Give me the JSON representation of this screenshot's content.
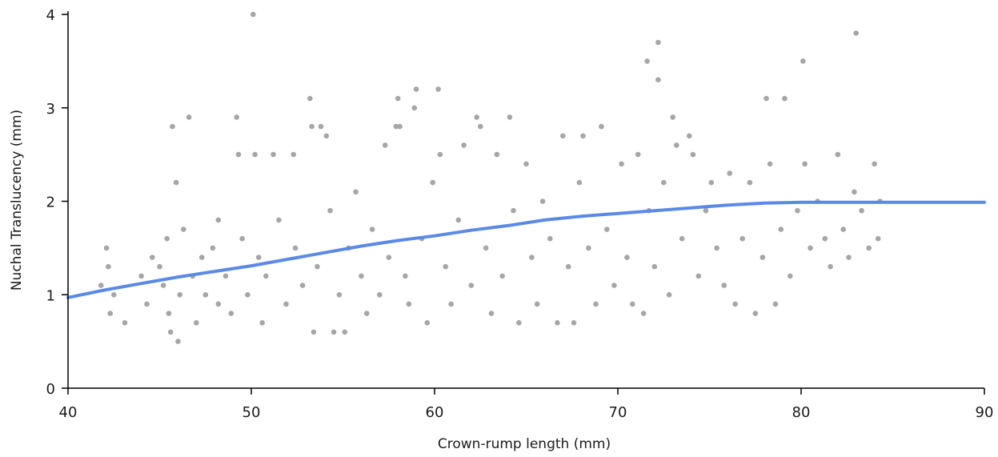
{
  "chart_data": {
    "type": "scatter",
    "title": "",
    "xlabel": "Crown-rump length (mm)",
    "ylabel": "Nuchal Translucency (mm)",
    "xlim": [
      40,
      90
    ],
    "ylim": [
      0,
      4
    ],
    "xticks": [
      "40",
      "50",
      "60",
      "70",
      "80",
      "90"
    ],
    "yticks": [
      "0",
      "1",
      "2",
      "3",
      "4"
    ],
    "grid": false,
    "legend": "none",
    "point_color": "#a6a6a6",
    "curve_color": "#5b8ae6",
    "points_note": "approximately 1,500 measurements; representative sample below",
    "points": [
      [
        41.8,
        1.1
      ],
      [
        42.1,
        1.5
      ],
      [
        42.2,
        1.3
      ],
      [
        42.3,
        0.8
      ],
      [
        42.5,
        1.0
      ],
      [
        43.1,
        0.7
      ],
      [
        44.0,
        1.2
      ],
      [
        44.3,
        0.9
      ],
      [
        44.6,
        1.4
      ],
      [
        45.0,
        1.3
      ],
      [
        45.2,
        1.1
      ],
      [
        45.4,
        1.6
      ],
      [
        45.5,
        0.8
      ],
      [
        45.6,
        0.6
      ],
      [
        45.7,
        2.8
      ],
      [
        45.9,
        2.2
      ],
      [
        46.0,
        0.5
      ],
      [
        46.1,
        1.0
      ],
      [
        46.3,
        1.7
      ],
      [
        46.6,
        2.9
      ],
      [
        46.8,
        1.2
      ],
      [
        47.0,
        0.7
      ],
      [
        47.3,
        1.4
      ],
      [
        47.5,
        1.0
      ],
      [
        47.9,
        1.5
      ],
      [
        48.2,
        0.9
      ],
      [
        48.2,
        1.8
      ],
      [
        48.6,
        1.2
      ],
      [
        48.9,
        0.8
      ],
      [
        49.2,
        2.9
      ],
      [
        49.3,
        2.5
      ],
      [
        49.5,
        1.6
      ],
      [
        49.8,
        1.0
      ],
      [
        50.1,
        4.0
      ],
      [
        50.2,
        2.5
      ],
      [
        50.4,
        1.4
      ],
      [
        50.6,
        0.7
      ],
      [
        50.8,
        1.2
      ],
      [
        51.2,
        2.5
      ],
      [
        51.5,
        1.8
      ],
      [
        51.9,
        0.9
      ],
      [
        52.3,
        2.5
      ],
      [
        52.4,
        1.5
      ],
      [
        52.8,
        1.1
      ],
      [
        53.2,
        3.1
      ],
      [
        53.3,
        2.8
      ],
      [
        53.4,
        0.6
      ],
      [
        53.6,
        1.3
      ],
      [
        53.8,
        2.8
      ],
      [
        54.1,
        2.7
      ],
      [
        54.3,
        1.9
      ],
      [
        54.5,
        0.6
      ],
      [
        54.8,
        1.0
      ],
      [
        55.1,
        0.6
      ],
      [
        55.3,
        1.5
      ],
      [
        55.7,
        2.1
      ],
      [
        56.0,
        1.2
      ],
      [
        56.3,
        0.8
      ],
      [
        56.6,
        1.7
      ],
      [
        57.0,
        1.0
      ],
      [
        57.3,
        2.6
      ],
      [
        57.5,
        1.4
      ],
      [
        57.9,
        2.8
      ],
      [
        58.0,
        3.1
      ],
      [
        58.1,
        2.8
      ],
      [
        58.4,
        1.2
      ],
      [
        58.6,
        0.9
      ],
      [
        58.9,
        3.0
      ],
      [
        59.0,
        3.2
      ],
      [
        59.3,
        1.6
      ],
      [
        59.6,
        0.7
      ],
      [
        59.9,
        2.2
      ],
      [
        60.2,
        3.2
      ],
      [
        60.3,
        2.5
      ],
      [
        60.6,
        1.3
      ],
      [
        60.9,
        0.9
      ],
      [
        61.3,
        1.8
      ],
      [
        61.6,
        2.6
      ],
      [
        62.0,
        1.1
      ],
      [
        62.3,
        2.9
      ],
      [
        62.5,
        2.8
      ],
      [
        62.8,
        1.5
      ],
      [
        63.1,
        0.8
      ],
      [
        63.4,
        2.5
      ],
      [
        63.7,
        1.2
      ],
      [
        64.1,
        2.9
      ],
      [
        64.3,
        1.9
      ],
      [
        64.6,
        0.7
      ],
      [
        65.0,
        2.4
      ],
      [
        65.3,
        1.4
      ],
      [
        65.6,
        0.9
      ],
      [
        65.9,
        2.0
      ],
      [
        66.3,
        1.6
      ],
      [
        66.7,
        0.7
      ],
      [
        67.0,
        2.7
      ],
      [
        67.3,
        1.3
      ],
      [
        67.6,
        0.7
      ],
      [
        67.9,
        2.2
      ],
      [
        68.1,
        2.7
      ],
      [
        68.4,
        1.5
      ],
      [
        68.8,
        0.9
      ],
      [
        69.1,
        2.8
      ],
      [
        69.4,
        1.7
      ],
      [
        69.8,
        1.1
      ],
      [
        70.2,
        2.4
      ],
      [
        70.5,
        1.4
      ],
      [
        70.8,
        0.9
      ],
      [
        71.1,
        2.5
      ],
      [
        71.4,
        0.8
      ],
      [
        71.6,
        3.5
      ],
      [
        71.7,
        1.9
      ],
      [
        72.0,
        1.3
      ],
      [
        72.2,
        3.7
      ],
      [
        72.2,
        3.3
      ],
      [
        72.5,
        2.2
      ],
      [
        72.8,
        1.0
      ],
      [
        73.0,
        2.9
      ],
      [
        73.2,
        2.6
      ],
      [
        73.5,
        1.6
      ],
      [
        73.9,
        2.7
      ],
      [
        74.1,
        2.5
      ],
      [
        74.4,
        1.2
      ],
      [
        74.8,
        1.9
      ],
      [
        75.1,
        2.2
      ],
      [
        75.4,
        1.5
      ],
      [
        75.8,
        1.1
      ],
      [
        76.1,
        2.3
      ],
      [
        76.4,
        0.9
      ],
      [
        76.8,
        1.6
      ],
      [
        77.2,
        2.2
      ],
      [
        77.5,
        0.8
      ],
      [
        77.9,
        1.4
      ],
      [
        78.1,
        3.1
      ],
      [
        78.3,
        2.4
      ],
      [
        78.6,
        0.9
      ],
      [
        78.9,
        1.7
      ],
      [
        79.1,
        3.1
      ],
      [
        79.4,
        1.2
      ],
      [
        79.8,
        1.9
      ],
      [
        80.1,
        3.5
      ],
      [
        80.2,
        2.4
      ],
      [
        80.5,
        1.5
      ],
      [
        80.9,
        2.0
      ],
      [
        81.3,
        1.6
      ],
      [
        81.6,
        1.3
      ],
      [
        82.0,
        2.5
      ],
      [
        82.3,
        1.7
      ],
      [
        82.6,
        1.4
      ],
      [
        82.9,
        2.1
      ],
      [
        83.0,
        3.8
      ],
      [
        83.3,
        1.9
      ],
      [
        83.7,
        1.5
      ],
      [
        84.0,
        2.4
      ],
      [
        84.2,
        1.6
      ],
      [
        84.3,
        2.0
      ]
    ],
    "fit_curve": [
      [
        40,
        0.97
      ],
      [
        42,
        1.05
      ],
      [
        44,
        1.12
      ],
      [
        46,
        1.19
      ],
      [
        48,
        1.25
      ],
      [
        50,
        1.31
      ],
      [
        52,
        1.38
      ],
      [
        54,
        1.45
      ],
      [
        56,
        1.52
      ],
      [
        58,
        1.58
      ],
      [
        60,
        1.63
      ],
      [
        62,
        1.69
      ],
      [
        64,
        1.74
      ],
      [
        66,
        1.8
      ],
      [
        68,
        1.84
      ],
      [
        70,
        1.87
      ],
      [
        72,
        1.9
      ],
      [
        74,
        1.93
      ],
      [
        76,
        1.96
      ],
      [
        78,
        1.98
      ],
      [
        80,
        1.99
      ],
      [
        82,
        1.99
      ],
      [
        84,
        1.99
      ],
      [
        86,
        1.99
      ],
      [
        88,
        1.99
      ],
      [
        90,
        1.99
      ]
    ]
  }
}
